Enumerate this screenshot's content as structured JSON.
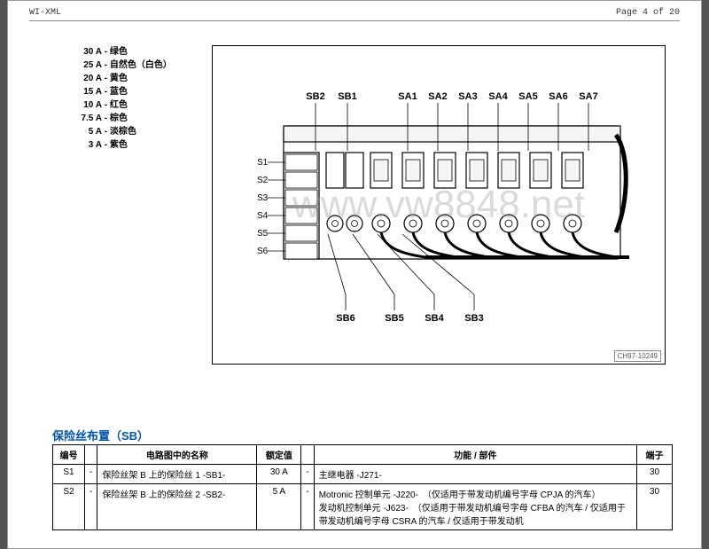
{
  "header": {
    "left": "WI-XML",
    "right": "Page 4 of 20"
  },
  "legend": [
    {
      "amp": "30 A",
      "color": "绿色"
    },
    {
      "amp": "25 A",
      "color": "自然色（白色）"
    },
    {
      "amp": "20 A",
      "color": "黄色"
    },
    {
      "amp": "15 A",
      "color": "蓝色"
    },
    {
      "amp": "10 A",
      "color": "红色"
    },
    {
      "amp": "7.5 A",
      "color": "棕色"
    },
    {
      "amp": "5 A",
      "color": "淡棕色"
    },
    {
      "amp": "3 A",
      "color": "紫色"
    }
  ],
  "diagram": {
    "id": "CH97-10249",
    "top_labels": [
      "SB2",
      "SB1",
      "SA1",
      "SA2",
      "SA3",
      "SA4",
      "SA5",
      "SA6",
      "SA7"
    ],
    "top_x": [
      116,
      152,
      220,
      254,
      288,
      322,
      356,
      390,
      424
    ],
    "left_labels": [
      "S1",
      "S2",
      "S3",
      "S4",
      "S5",
      "S6"
    ],
    "bottom_labels": [
      "SB6",
      "SB5",
      "SB4",
      "SB3"
    ],
    "bottom_x": [
      150,
      205,
      250,
      295
    ],
    "colors": {
      "outline": "#000000",
      "fill_body": "#ffffff",
      "fill_light": "#f5f5f5",
      "leader": "#000000"
    },
    "stroke_width": 1.2
  },
  "watermark": "www.vw8848.net",
  "section_title": "保险丝布置（SB）",
  "table": {
    "headers": [
      "编号",
      "",
      "电路图中的名称",
      "额定值",
      "",
      "功能 / 部件",
      "端子"
    ],
    "rows": [
      {
        "num": "S1",
        "name": "保险丝架 B 上的保险丝 1 -SB1-",
        "rate": "30 A",
        "func": "主继电器 -J271-",
        "term": "30"
      },
      {
        "num": "S2",
        "name": "保险丝架 B 上的保险丝 2 -SB2-",
        "rate": "5 A",
        "func": "Motronic 控制单元 -J220-　（仅适用于带发动机编号字母 CPJA 的汽车）\n发动机控制单元 -J623-　（仅适用于带发动机编号字母 CFBA 的汽车 / 仅适用于带发动机编号字母 CSRA 的汽车 / 仅适用于带发动机",
        "term": "30"
      }
    ]
  }
}
